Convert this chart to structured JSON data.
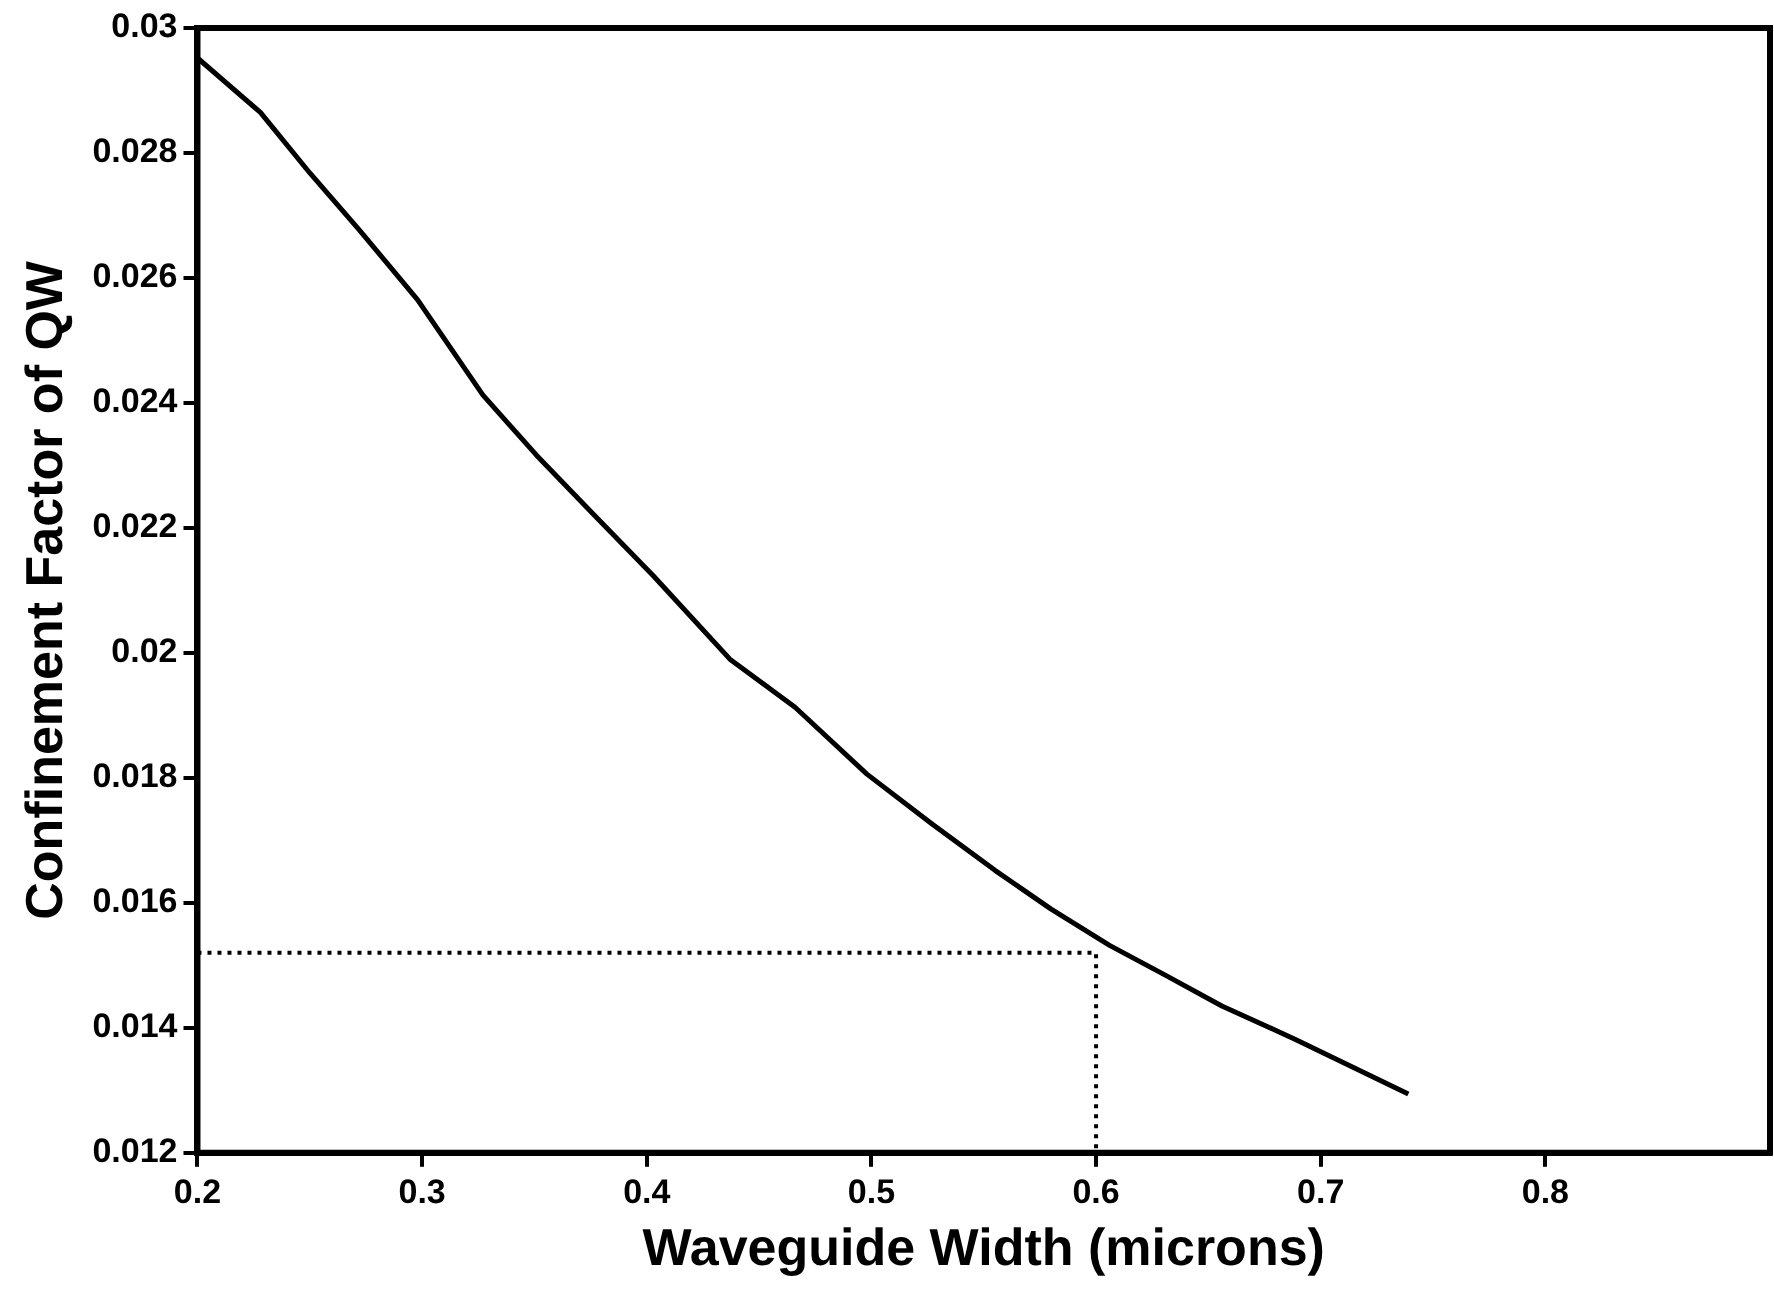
{
  "chart_data": {
    "type": "line",
    "xlabel": "Waveguide Width (microns)",
    "ylabel": "Confinement Factor of QW",
    "series": [
      {
        "color": "#000000",
        "line_style": "solid",
        "x": [
          0.2,
          0.228,
          0.25,
          0.272,
          0.298,
          0.327,
          0.351,
          0.377,
          0.403,
          0.437,
          0.466,
          0.498,
          0.527,
          0.555,
          0.58,
          0.606,
          0.631,
          0.656,
          0.689,
          0.739
        ],
        "values": [
          0.02952,
          0.02865,
          0.02768,
          0.02677,
          0.02565,
          0.02413,
          0.02316,
          0.02219,
          0.02123,
          0.0199,
          0.01913,
          0.01806,
          0.01726,
          0.01652,
          0.0159,
          0.01532,
          0.01484,
          0.01435,
          0.01381,
          0.01294
        ]
      },
      {
        "color": "#000000",
        "line_style": "dotted",
        "x": [
          0.2,
          0.6,
          0.6
        ],
        "values": [
          0.0152,
          0.0152,
          0.012
        ]
      }
    ],
    "xlim": [
      0.2,
      0.9
    ],
    "xticks": [
      0.2,
      0.3,
      0.4,
      0.5,
      0.6,
      0.7,
      0.8
    ],
    "ylim": [
      0.012,
      0.03
    ],
    "yticks": [
      0.012,
      0.014,
      0.016,
      0.018,
      0.02,
      0.022,
      0.024,
      0.026,
      0.028,
      0.03
    ],
    "grid": false,
    "legend": false,
    "marker": "none"
  }
}
